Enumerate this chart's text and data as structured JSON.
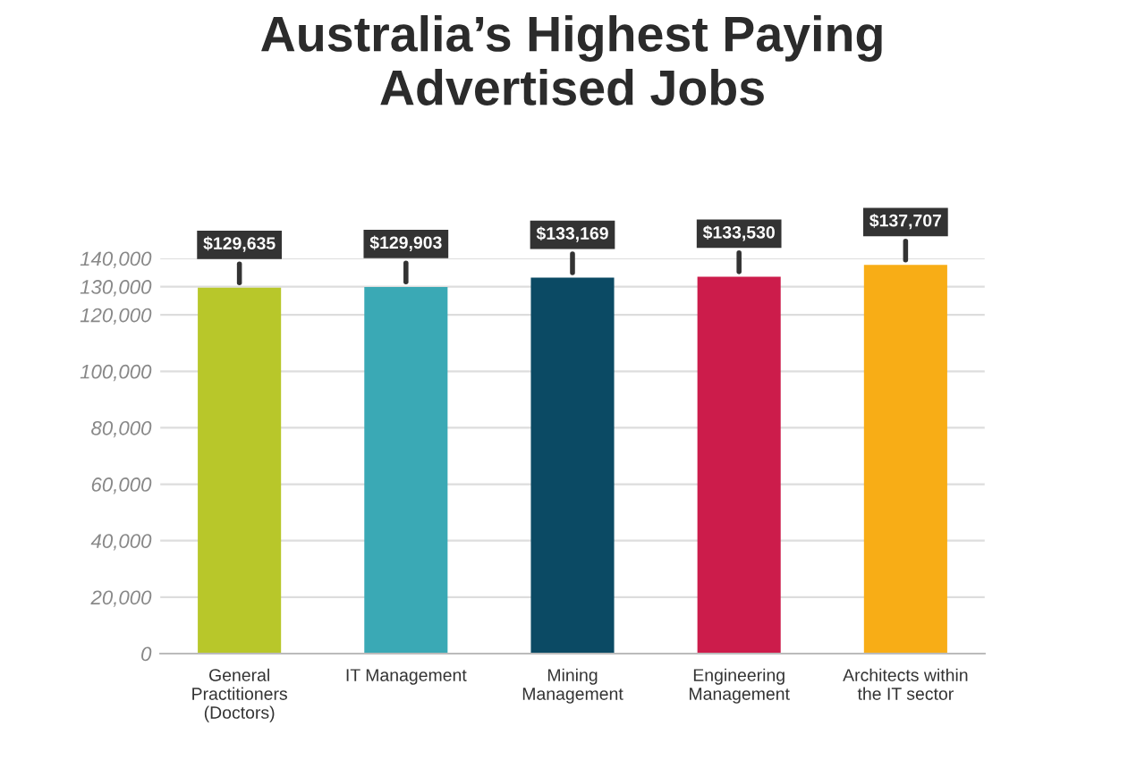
{
  "chart_data": {
    "type": "bar",
    "title": "Australia’s Highest Paying\nAdvertised Jobs",
    "categories": [
      "General\nPractitioners\n(Doctors)",
      "IT Management",
      "Mining\nManagement",
      "Engineering\nManagement",
      "Architects within\nthe IT sector"
    ],
    "values": [
      129635,
      129903,
      133169,
      133530,
      137707
    ],
    "colors": [
      "#b8c72a",
      "#3aa9b5",
      "#0b4a64",
      "#cc1c4b",
      "#f8ad16"
    ],
    "value_labels": [
      "$129,635",
      "$129,903",
      "$133,169",
      "$133,530",
      "$137,707"
    ],
    "ylim": [
      0,
      140000
    ],
    "yticks": [
      0,
      {
        "value": 20000,
        "label": "20,000"
      },
      {
        "value": 40000,
        "label": "40,000"
      },
      {
        "value": 60000,
        "label": "60,000"
      },
      {
        "value": 80000,
        "label": "80,000"
      },
      {
        "value": 100000,
        "label": "100,000"
      },
      {
        "value": 120000,
        "label": "120,000"
      },
      {
        "value": 130000,
        "label": "130,000"
      },
      {
        "value": 140000,
        "label": "140,000"
      }
    ],
    "grid": "y"
  }
}
